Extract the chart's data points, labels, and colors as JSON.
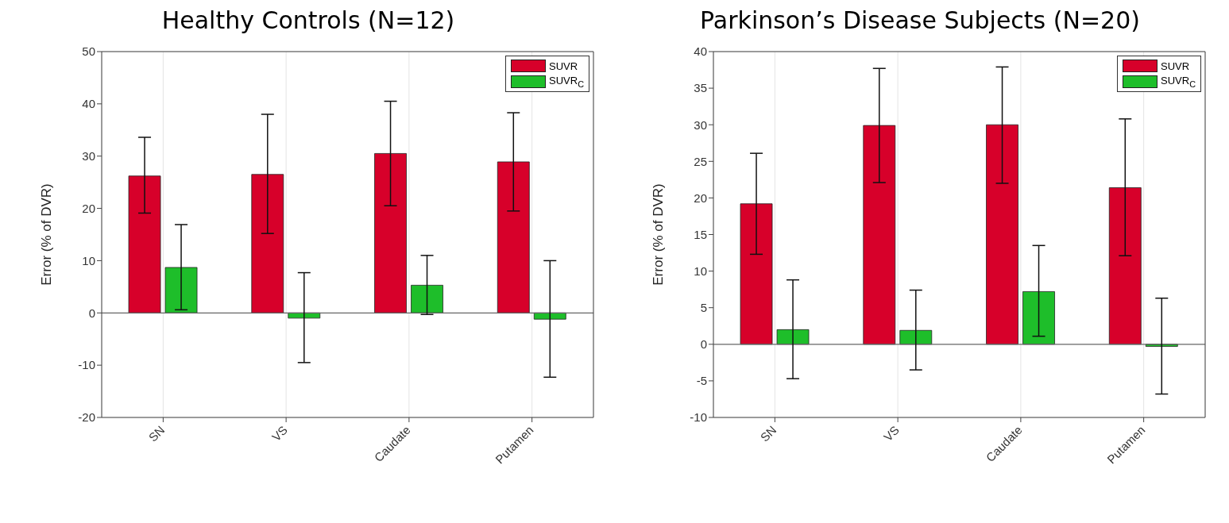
{
  "chart_data": [
    {
      "type": "bar",
      "title": "Healthy Controls (N=12)",
      "ylabel": "Error (% of DVR)",
      "categories": [
        "SN",
        "VS",
        "Caudate",
        "Putamen"
      ],
      "series": [
        {
          "name": "SUVR",
          "color": "#d7002a",
          "values": [
            26.2,
            26.5,
            30.5,
            28.9
          ],
          "errors": [
            [
              19.1,
              33.6
            ],
            [
              15.2,
              38.0
            ],
            [
              20.5,
              40.5
            ],
            [
              19.5,
              38.3
            ]
          ]
        },
        {
          "name": "SUVR$_{C}$",
          "color": "#1ebe2a",
          "values": [
            8.7,
            -1.0,
            5.3,
            -1.2
          ],
          "errors": [
            [
              0.6,
              16.9
            ],
            [
              -9.5,
              7.7
            ],
            [
              -0.3,
              11.0
            ],
            [
              -12.3,
              10.0
            ]
          ]
        }
      ],
      "ylim": [
        -20,
        50
      ],
      "yticks": [
        -20,
        -10,
        0,
        10,
        20,
        30,
        40,
        50
      ],
      "grid": true,
      "legend": "top right",
      "ref_lines": [
        {
          "axis": "y",
          "value": 0
        }
      ]
    },
    {
      "type": "bar",
      "title": "Parkinson’s Disease Subjects (N=20)",
      "ylabel": "Error (% of DVR)",
      "categories": [
        "SN",
        "VS",
        "Caudate",
        "Putamen"
      ],
      "series": [
        {
          "name": "SUVR",
          "color": "#d7002a",
          "values": [
            19.2,
            29.9,
            30.0,
            21.4
          ],
          "errors": [
            [
              12.3,
              26.1
            ],
            [
              22.1,
              37.7
            ],
            [
              22.0,
              37.9
            ],
            [
              12.1,
              30.8
            ]
          ]
        },
        {
          "name": "SUVR$_{C}$",
          "color": "#1ebe2a",
          "values": [
            2.0,
            1.9,
            7.2,
            -0.3
          ],
          "errors": [
            [
              -4.7,
              8.8
            ],
            [
              -3.5,
              7.4
            ],
            [
              1.1,
              13.5
            ],
            [
              -6.8,
              6.3
            ]
          ]
        }
      ],
      "ylim": [
        -10,
        40
      ],
      "yticks": [
        -10,
        -5,
        0,
        5,
        10,
        15,
        20,
        25,
        30,
        35,
        40
      ],
      "grid": true,
      "legend": "top right",
      "ref_lines": [
        {
          "axis": "y",
          "value": 0
        }
      ]
    }
  ]
}
